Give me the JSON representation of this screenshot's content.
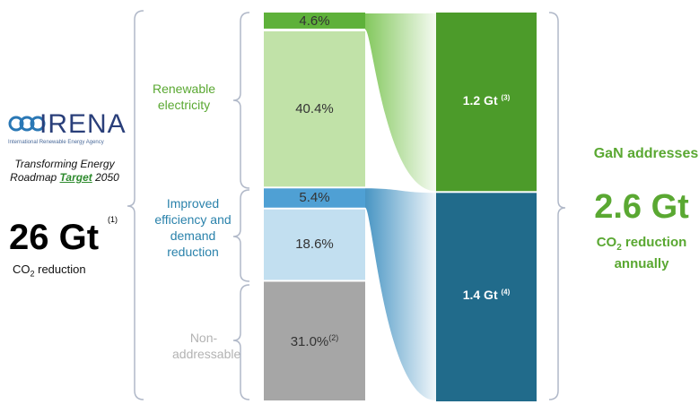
{
  "logo": {
    "name": "IRENA",
    "subtitle": "International Renewable Energy Agency"
  },
  "left": {
    "caption_line1": "Transforming Energy",
    "caption_pre": "Roadmap ",
    "caption_target": "Target",
    "caption_post": " 2050",
    "total_value": "26 Gt",
    "total_footnote": "(1)",
    "total_label_pre": "CO",
    "total_label_sub": "2",
    "total_label_post": " reduction"
  },
  "groups": {
    "renewable": "Renewable electricity",
    "efficiency": "Improved efficiency and demand reduction",
    "non_addressable": "Non-addressable"
  },
  "right": {
    "head": "GaN addresses",
    "value": "2.6 Gt",
    "label_pre": "CO",
    "label_sub": "2",
    "label_post": " reduction annually"
  },
  "colors": {
    "green_dark": "#5eb13a",
    "green_light": "#c1e2a8",
    "blue_mid": "#4fa0d4",
    "blue_light": "#c2dff0",
    "gray": "#a6a6a6",
    "bar_green": "#4c9b2a",
    "bar_teal": "#216b8b",
    "text_green": "#5aa832",
    "text_blue": "#2a82ab"
  },
  "chart_data": {
    "type": "bar",
    "stacked_bar": {
      "unit": "%",
      "segments": [
        {
          "label": "4.6%",
          "value": 4.6,
          "group": "renewable",
          "footnote": ""
        },
        {
          "label": "40.4%",
          "value": 40.4,
          "group": "renewable",
          "footnote": ""
        },
        {
          "label": "5.4%",
          "value": 5.4,
          "group": "efficiency",
          "footnote": ""
        },
        {
          "label": "18.6%",
          "value": 18.6,
          "group": "efficiency",
          "footnote": ""
        },
        {
          "label": "31.0%",
          "value": 31.0,
          "group": "non_addressable",
          "footnote": "(2)"
        }
      ]
    },
    "gan_bar": {
      "unit": "Gt",
      "segments": [
        {
          "label": "1.2 Gt",
          "value": 1.2,
          "footnote": "(3)"
        },
        {
          "label": "1.4 Gt",
          "value": 1.4,
          "footnote": "(4)"
        }
      ]
    }
  }
}
